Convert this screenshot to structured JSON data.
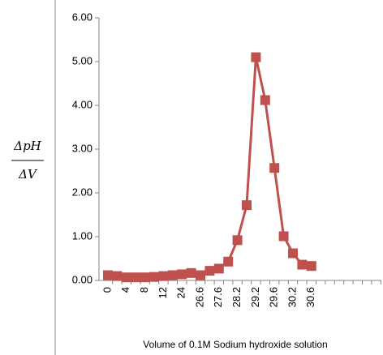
{
  "chart_data": {
    "type": "line",
    "y_label_numerator": "ΔpH",
    "y_label_denominator": "ΔV",
    "x_label": "Volume of 0.1M Sodium hydroxide solution",
    "categories": [
      "0",
      null,
      "4",
      null,
      "8",
      null,
      "12",
      null,
      "24",
      null,
      "26.6",
      null,
      "27.6",
      null,
      "28.2",
      null,
      "29.2",
      null,
      "29.6",
      null,
      "30.2",
      null,
      "30.6",
      null,
      null,
      null,
      null,
      null,
      null,
      null
    ],
    "values": [
      0.12,
      0.1,
      0.07,
      0.07,
      0.07,
      0.08,
      0.1,
      0.12,
      0.14,
      0.17,
      0.12,
      0.22,
      0.27,
      0.43,
      0.92,
      1.72,
      5.1,
      4.12,
      2.57,
      1.01,
      0.62,
      0.36,
      0.33,
      null,
      null,
      null,
      null,
      null,
      null,
      null
    ],
    "color": "#c0504d",
    "ylim": [
      0,
      6
    ],
    "yticks": [
      {
        "value": 0,
        "label": "0.00"
      },
      {
        "value": 1,
        "label": "1.00"
      },
      {
        "value": 2,
        "label": "2.00"
      },
      {
        "value": 3,
        "label": "3.00"
      },
      {
        "value": 4,
        "label": "4.00"
      },
      {
        "value": 5,
        "label": "5.00"
      },
      {
        "value": 6,
        "label": "6.00"
      }
    ],
    "grid": false
  }
}
